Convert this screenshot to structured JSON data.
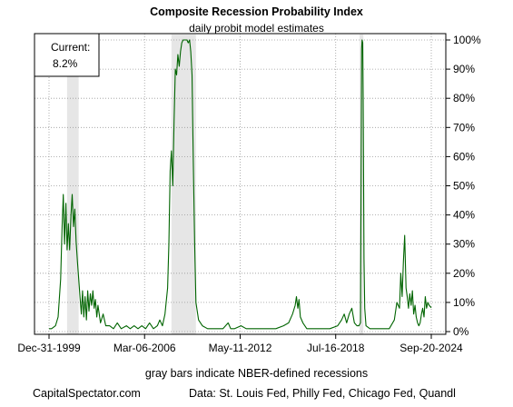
{
  "chart_data": {
    "type": "line",
    "title": "Composite Recession Probability Index",
    "subtitle": "daily probit model estimates",
    "annotation": {
      "label": "Current:",
      "value": "8.2%"
    },
    "footnote": "gray bars indicate NBER-defined recessions",
    "credit_left": "CapitalSpectator.com",
    "credit_right": "Data: St. Louis Fed, Philly Fed, Chicago Fed, Quandl",
    "x_tick_labels": [
      "Dec-31-1999",
      "Mar-06-2006",
      "May-11-2012",
      "Jul-16-2018",
      "Sep-20-2024"
    ],
    "x_ticks": [
      "1999-12-31",
      "2006-03-06",
      "2012-05-11",
      "2018-07-16",
      "2024-09-20"
    ],
    "y_tick_labels": [
      "0%",
      "10%",
      "20%",
      "30%",
      "40%",
      "50%",
      "60%",
      "70%",
      "80%",
      "90%",
      "100%"
    ],
    "xlim": [
      "1999-12-31",
      "2024-09-20"
    ],
    "ylim": [
      0,
      100
    ],
    "grid": true,
    "line_color": "#006400",
    "recession_color": "#e6e6e6",
    "recessions": [
      {
        "start": "2001-03-01",
        "end": "2001-11-30"
      },
      {
        "start": "2007-12-01",
        "end": "2009-06-30"
      },
      {
        "start": "2020-02-01",
        "end": "2020-04-30"
      }
    ],
    "series": [
      {
        "values": [
          [
            "1999-12-31",
            1
          ],
          [
            "2000-03-01",
            1
          ],
          [
            "2000-06-01",
            2
          ],
          [
            "2000-08-01",
            5
          ],
          [
            "2000-10-01",
            18
          ],
          [
            "2000-11-01",
            35
          ],
          [
            "2000-12-01",
            47
          ],
          [
            "2001-01-01",
            30
          ],
          [
            "2001-02-01",
            44
          ],
          [
            "2001-03-01",
            28
          ],
          [
            "2001-04-01",
            37
          ],
          [
            "2001-05-01",
            28
          ],
          [
            "2001-06-01",
            40
          ],
          [
            "2001-07-01",
            47
          ],
          [
            "2001-08-01",
            36
          ],
          [
            "2001-09-01",
            42
          ],
          [
            "2001-10-01",
            31
          ],
          [
            "2001-11-01",
            24
          ],
          [
            "2001-12-01",
            18
          ],
          [
            "2002-01-01",
            12
          ],
          [
            "2002-02-01",
            6
          ],
          [
            "2002-03-01",
            14
          ],
          [
            "2002-04-01",
            5
          ],
          [
            "2002-05-01",
            12
          ],
          [
            "2002-06-01",
            4
          ],
          [
            "2002-07-01",
            14
          ],
          [
            "2002-08-01",
            7
          ],
          [
            "2002-09-01",
            13
          ],
          [
            "2002-10-01",
            9
          ],
          [
            "2002-11-01",
            14
          ],
          [
            "2002-12-01",
            8
          ],
          [
            "2003-01-01",
            11
          ],
          [
            "2003-02-01",
            5
          ],
          [
            "2003-03-01",
            9
          ],
          [
            "2003-05-01",
            3
          ],
          [
            "2003-07-01",
            6
          ],
          [
            "2003-09-01",
            2
          ],
          [
            "2003-12-01",
            2
          ],
          [
            "2004-03-01",
            1
          ],
          [
            "2004-06-01",
            3
          ],
          [
            "2004-09-01",
            1
          ],
          [
            "2005-01-01",
            2
          ],
          [
            "2005-04-01",
            1
          ],
          [
            "2005-07-01",
            2
          ],
          [
            "2005-10-01",
            1
          ],
          [
            "2006-01-01",
            2
          ],
          [
            "2006-04-01",
            1
          ],
          [
            "2006-07-01",
            3
          ],
          [
            "2006-10-01",
            1
          ],
          [
            "2007-01-01",
            2
          ],
          [
            "2007-03-01",
            4
          ],
          [
            "2007-05-01",
            2
          ],
          [
            "2007-07-01",
            6
          ],
          [
            "2007-09-01",
            15
          ],
          [
            "2007-10-01",
            30
          ],
          [
            "2007-11-01",
            55
          ],
          [
            "2007-12-01",
            62
          ],
          [
            "2008-01-01",
            50
          ],
          [
            "2008-02-01",
            72
          ],
          [
            "2008-03-01",
            90
          ],
          [
            "2008-04-01",
            88
          ],
          [
            "2008-05-01",
            95
          ],
          [
            "2008-06-01",
            91
          ],
          [
            "2008-07-01",
            96
          ],
          [
            "2008-08-01",
            99
          ],
          [
            "2008-09-01",
            100
          ],
          [
            "2008-10-01",
            100
          ],
          [
            "2008-11-01",
            100
          ],
          [
            "2008-12-01",
            100
          ],
          [
            "2009-01-01",
            99
          ],
          [
            "2009-02-01",
            100
          ],
          [
            "2009-03-01",
            96
          ],
          [
            "2009-04-01",
            88
          ],
          [
            "2009-05-01",
            58
          ],
          [
            "2009-06-01",
            30
          ],
          [
            "2009-07-01",
            10
          ],
          [
            "2009-09-01",
            4
          ],
          [
            "2009-12-01",
            2
          ],
          [
            "2010-04-01",
            1
          ],
          [
            "2010-08-01",
            1
          ],
          [
            "2010-12-01",
            1
          ],
          [
            "2011-04-01",
            1
          ],
          [
            "2011-08-01",
            3
          ],
          [
            "2011-10-01",
            1
          ],
          [
            "2012-01-01",
            1
          ],
          [
            "2012-06-01",
            2
          ],
          [
            "2012-10-01",
            1
          ],
          [
            "2013-03-01",
            1
          ],
          [
            "2013-09-01",
            1
          ],
          [
            "2014-03-01",
            1
          ],
          [
            "2014-09-01",
            1
          ],
          [
            "2015-03-01",
            2
          ],
          [
            "2015-07-01",
            3
          ],
          [
            "2015-10-01",
            6
          ],
          [
            "2015-12-01",
            9
          ],
          [
            "2016-01-01",
            12
          ],
          [
            "2016-02-01",
            8
          ],
          [
            "2016-03-01",
            11
          ],
          [
            "2016-04-01",
            5
          ],
          [
            "2016-06-01",
            3
          ],
          [
            "2016-09-01",
            1
          ],
          [
            "2017-03-01",
            1
          ],
          [
            "2017-09-01",
            1
          ],
          [
            "2018-03-01",
            1
          ],
          [
            "2018-09-01",
            2
          ],
          [
            "2018-12-01",
            4
          ],
          [
            "2019-02-01",
            6
          ],
          [
            "2019-04-01",
            3
          ],
          [
            "2019-06-01",
            6
          ],
          [
            "2019-08-01",
            8
          ],
          [
            "2019-10-01",
            3
          ],
          [
            "2019-12-01",
            2
          ],
          [
            "2020-01-15",
            2
          ],
          [
            "2020-02-20",
            3
          ],
          [
            "2020-03-10",
            60
          ],
          [
            "2020-03-20",
            97
          ],
          [
            "2020-03-30",
            100
          ],
          [
            "2020-04-15",
            99
          ],
          [
            "2020-04-25",
            80
          ],
          [
            "2020-05-05",
            50
          ],
          [
            "2020-05-15",
            25
          ],
          [
            "2020-06-01",
            8
          ],
          [
            "2020-07-01",
            2
          ],
          [
            "2020-10-01",
            1
          ],
          [
            "2021-03-01",
            1
          ],
          [
            "2021-08-01",
            1
          ],
          [
            "2022-01-01",
            1
          ],
          [
            "2022-05-01",
            4
          ],
          [
            "2022-07-01",
            10
          ],
          [
            "2022-09-01",
            8
          ],
          [
            "2022-10-01",
            20
          ],
          [
            "2022-11-01",
            12
          ],
          [
            "2022-12-01",
            24
          ],
          [
            "2023-01-01",
            33
          ],
          [
            "2023-02-01",
            15
          ],
          [
            "2023-03-01",
            12
          ],
          [
            "2023-04-01",
            8
          ],
          [
            "2023-05-01",
            13
          ],
          [
            "2023-06-01",
            9
          ],
          [
            "2023-07-01",
            14
          ],
          [
            "2023-08-01",
            6
          ],
          [
            "2023-09-01",
            9
          ],
          [
            "2023-10-01",
            5
          ],
          [
            "2023-11-01",
            3
          ],
          [
            "2023-12-01",
            2
          ],
          [
            "2024-01-01",
            3
          ],
          [
            "2024-02-01",
            6
          ],
          [
            "2024-03-01",
            8
          ],
          [
            "2024-04-01",
            5
          ],
          [
            "2024-05-01",
            12
          ],
          [
            "2024-06-01",
            8
          ],
          [
            "2024-07-01",
            10
          ],
          [
            "2024-08-01",
            9
          ],
          [
            "2024-09-20",
            8.2
          ]
        ]
      }
    ]
  }
}
